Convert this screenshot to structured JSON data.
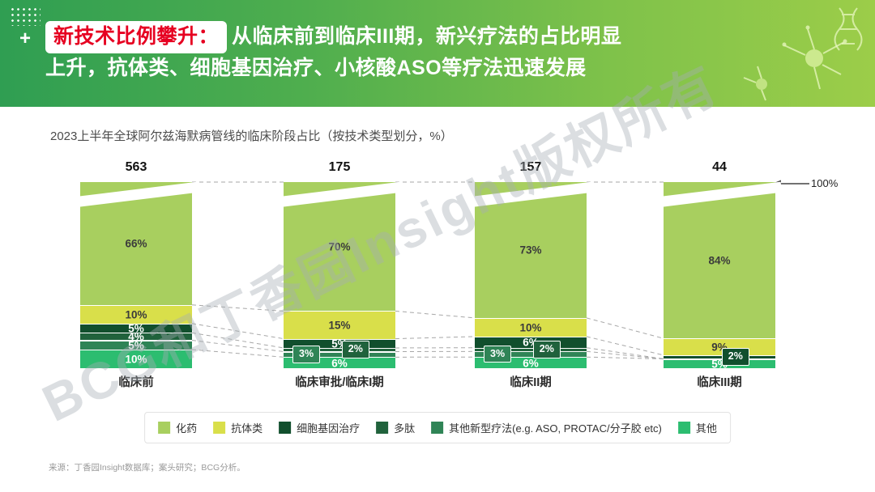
{
  "header": {
    "plus": "+",
    "highlight": "新技术比例攀升：",
    "title_line1": "从临床前到临床III期，新兴疗法的占比明显",
    "title_line2": "上升，抗体类、细胞基因治疗、小核酸ASO等疗法迅速发展"
  },
  "chart_data": {
    "type": "bar",
    "stacked": true,
    "percent_stacked": true,
    "title": "2023上半年全球阿尔兹海默病管线的临床阶段占比（按技术类型划分，%）",
    "categories": [
      "临床前",
      "临床审批/临床I期",
      "临床II期",
      "临床III期"
    ],
    "totals": [
      563,
      175,
      157,
      44
    ],
    "hundred_label": "100%",
    "ylim": [
      0,
      100
    ],
    "legend_position": "bottom",
    "series": [
      {
        "name": "化药",
        "color": "#a8cf5f",
        "values": [
          66,
          70,
          73,
          84
        ]
      },
      {
        "name": "抗体类",
        "color": "#d9df4a",
        "values": [
          10,
          15,
          10,
          9
        ]
      },
      {
        "name": "细胞基因治疗",
        "color": "#114f2d",
        "values": [
          5,
          5,
          6,
          2
        ]
      },
      {
        "name": "多肽",
        "color": "#20623c",
        "values": [
          4,
          2,
          2,
          0
        ]
      },
      {
        "name": "其他新型疗法(e.g. ASO, PROTAC/分子胶 etc)",
        "color": "#2f8456",
        "values": [
          5,
          3,
          3,
          0
        ]
      },
      {
        "name": "其他",
        "color": "#2cbd70",
        "values": [
          10,
          6,
          6,
          5
        ]
      }
    ]
  },
  "source": "来源：丁香园Insight数据库；案头研究；BCG分析。",
  "watermark": "BCG和丁香园Insight版权所有"
}
